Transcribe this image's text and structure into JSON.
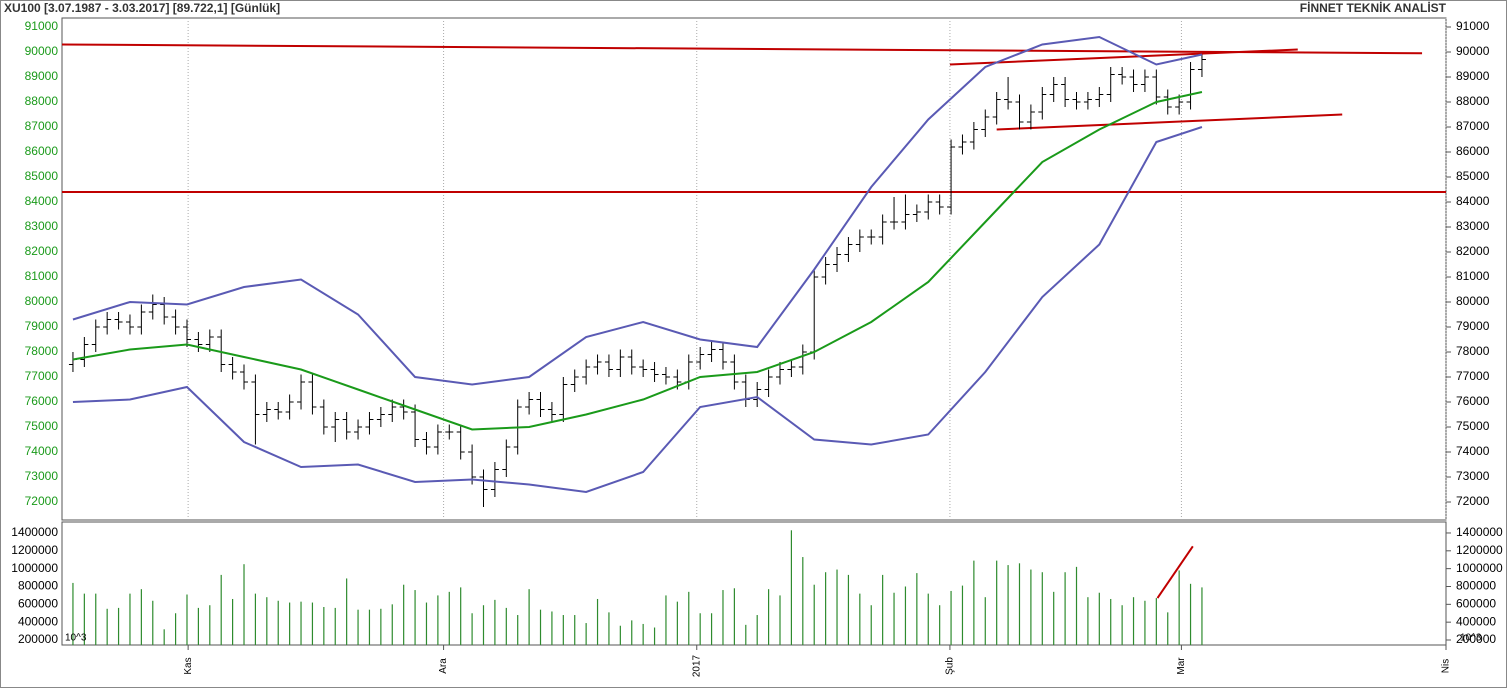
{
  "header": {
    "left": "XU100  [3.07.1987 - 3.03.2017]  [89.722,1]  [Günlük]",
    "right": "FİNNET TEKNİK ANALİST"
  },
  "chart_data": [
    {
      "type": "ohlc",
      "color": "#000000",
      "x": [
        0,
        1,
        2,
        3,
        4,
        5,
        6,
        7,
        8,
        9,
        10,
        11,
        12,
        13,
        14,
        15,
        16,
        17,
        18,
        19,
        20,
        21,
        22,
        23,
        24,
        25,
        26,
        27,
        28,
        29,
        30,
        31,
        32,
        33,
        34,
        35,
        36,
        37,
        38,
        39,
        40,
        41,
        42,
        43,
        44,
        45,
        46,
        47,
        48,
        49,
        50,
        51,
        52,
        53,
        54,
        55,
        56,
        57,
        58,
        59,
        60,
        61,
        62,
        63,
        64,
        65,
        66,
        67,
        68,
        69,
        70,
        71,
        72,
        73,
        74,
        75,
        76,
        77,
        78,
        79,
        80,
        81,
        82,
        83,
        84,
        85,
        86,
        87,
        88,
        89,
        90,
        91,
        92,
        93,
        94,
        95,
        96,
        97,
        98,
        99
      ],
      "open": [
        77500,
        77700,
        78300,
        79000,
        79300,
        79200,
        79000,
        79600,
        79900,
        79400,
        79000,
        78500,
        78300,
        78600,
        77500,
        77200,
        76800,
        75500,
        75700,
        75600,
        76000,
        76800,
        75800,
        75000,
        75300,
        74800,
        75000,
        75300,
        75500,
        75800,
        75600,
        74500,
        74200,
        74800,
        74800,
        74000,
        73000,
        72500,
        73300,
        74200,
        75800,
        76100,
        75700,
        75500,
        76700,
        77000,
        77400,
        77600,
        77300,
        77800,
        77400,
        77300,
        77100,
        77000,
        76800,
        77600,
        77900,
        78100,
        77600,
        76800,
        76100,
        76500,
        77000,
        77300,
        77400,
        78000,
        81000,
        81500,
        81900,
        82300,
        82600,
        82600,
        83200,
        83200,
        83500,
        83600,
        84000,
        83800,
        86200,
        86400,
        86900,
        87400,
        88100,
        88000,
        87200,
        87600,
        88300,
        88700,
        88100,
        88000,
        88100,
        88300,
        89100,
        89000,
        88700,
        89000,
        88200,
        87800,
        88000,
        89300
      ],
      "high": [
        78000,
        78600,
        79300,
        79600,
        79600,
        79500,
        79900,
        80300,
        80200,
        79700,
        79300,
        78800,
        78900,
        78900,
        77800,
        77500,
        77100,
        76000,
        76000,
        76300,
        77100,
        77100,
        76100,
        75600,
        75600,
        75300,
        75600,
        75800,
        76100,
        76100,
        75900,
        74800,
        75100,
        75100,
        75100,
        74300,
        73300,
        73600,
        74500,
        76100,
        76400,
        76400,
        76000,
        77000,
        77300,
        77700,
        77900,
        77900,
        78100,
        78100,
        77700,
        77600,
        77400,
        77300,
        77900,
        78200,
        78400,
        78400,
        77900,
        77100,
        76800,
        77300,
        77600,
        77700,
        78300,
        81300,
        81800,
        82200,
        82600,
        82900,
        82900,
        83500,
        84200,
        84300,
        83900,
        84300,
        84300,
        86500,
        86700,
        87200,
        87700,
        88400,
        89000,
        88300,
        87900,
        88600,
        89000,
        89000,
        88400,
        88400,
        88600,
        89400,
        89400,
        89300,
        89300,
        89300,
        88500,
        88300,
        89600,
        89900
      ],
      "low": [
        77200,
        77400,
        78000,
        78700,
        78900,
        78700,
        78700,
        79300,
        79100,
        78700,
        78200,
        78000,
        78000,
        77200,
        76900,
        76500,
        74300,
        75200,
        75300,
        75300,
        75700,
        75500,
        74700,
        74400,
        74500,
        74500,
        74700,
        75000,
        75200,
        75300,
        74200,
        73900,
        73900,
        74500,
        73700,
        72700,
        71800,
        72200,
        73000,
        73900,
        75500,
        75400,
        75200,
        75200,
        76400,
        76700,
        77100,
        77000,
        77000,
        77100,
        77000,
        76800,
        76700,
        76500,
        76500,
        77300,
        77600,
        77300,
        76500,
        75800,
        75800,
        76200,
        76700,
        77000,
        77100,
        77700,
        80700,
        81200,
        81600,
        82000,
        82300,
        82300,
        82900,
        82900,
        83200,
        83300,
        83500,
        83500,
        85900,
        86100,
        86600,
        87100,
        87700,
        86900,
        86900,
        87300,
        88000,
        87800,
        87700,
        87700,
        87800,
        88000,
        88700,
        88400,
        88400,
        87900,
        87500,
        87500,
        87700,
        89000
      ],
      "close": [
        77700,
        78300,
        79000,
        79300,
        79200,
        79000,
        79600,
        79900,
        79400,
        79000,
        78500,
        78300,
        78600,
        77500,
        77200,
        76800,
        75500,
        75700,
        75600,
        76000,
        76800,
        75800,
        75000,
        75300,
        74800,
        75000,
        75300,
        75500,
        75800,
        75600,
        74500,
        74200,
        74800,
        74800,
        74000,
        73000,
        72500,
        73300,
        74200,
        75800,
        76100,
        75700,
        75500,
        76700,
        77000,
        77400,
        77600,
        77300,
        77800,
        77400,
        77300,
        77100,
        77000,
        76800,
        77600,
        77900,
        78100,
        77600,
        76800,
        76100,
        76500,
        77000,
        77300,
        77400,
        78000,
        81000,
        81500,
        81900,
        82300,
        82600,
        82600,
        83200,
        83200,
        83500,
        83600,
        84000,
        83800,
        86200,
        86400,
        86900,
        87400,
        88100,
        88000,
        87200,
        87600,
        88300,
        88700,
        88100,
        88000,
        88100,
        88300,
        89100,
        89000,
        88700,
        89000,
        88200,
        87800,
        88000,
        89300,
        89700
      ],
      "line_x": [
        0,
        5,
        10,
        15,
        20,
        25,
        30,
        35,
        40,
        45,
        50,
        55,
        60,
        65,
        70,
        75,
        80,
        85,
        90,
        95,
        99
      ],
      "lines": [
        {
          "color": "#5a5ab4",
          "values": [
            79300,
            80000,
            79900,
            80600,
            80900,
            79500,
            77000,
            76700,
            77000,
            78600,
            79200,
            78500,
            78200,
            81300,
            84600,
            87300,
            89400,
            90300,
            90600,
            89500,
            89900
          ]
        },
        {
          "color": "#1a9a1a",
          "values": [
            77700,
            78100,
            78300,
            77800,
            77300,
            76500,
            75700,
            74900,
            75000,
            75500,
            76100,
            77000,
            77200,
            78000,
            79200,
            80800,
            83200,
            85600,
            86900,
            88000,
            88400
          ]
        },
        {
          "color": "#5a5ab4",
          "values": [
            76000,
            76100,
            76600,
            74400,
            73400,
            73500,
            72800,
            72900,
            72700,
            72400,
            73200,
            75800,
            76200,
            74500,
            74300,
            74700,
            77200,
            80200,
            82300,
            86400,
            87000
          ]
        }
      ],
      "trendline_color": "#c00000",
      "trendlines": [
        {
          "x": [
            -0.96,
            118.3
          ],
          "values": [
            90300,
            89950
          ]
        },
        {
          "x": [
            -0.96,
            120.4
          ],
          "values": [
            84400,
            84400
          ]
        },
        {
          "x": [
            76.9,
            107.4
          ],
          "values": [
            89500,
            90100
          ]
        },
        {
          "x": [
            81,
            111.3
          ],
          "values": [
            86900,
            87500
          ]
        }
      ],
      "xlim": [
        -0.96,
        120.4
      ],
      "xticks": [
        {
          "value": 10.1,
          "label": "Kas"
        },
        {
          "value": 32.5,
          "label": "Ara"
        },
        {
          "value": 54.7,
          "label": "2017"
        },
        {
          "value": 76.9,
          "label": "Şub"
        },
        {
          "value": 97.2,
          "label": "Mar"
        },
        {
          "value": 120.4,
          "label": "Nis"
        }
      ],
      "xgrid": true,
      "ylim": [
        71280,
        91360
      ],
      "yticks": [
        72000,
        73000,
        74000,
        75000,
        76000,
        77000,
        78000,
        79000,
        80000,
        81000,
        82000,
        83000,
        84000,
        85000,
        86000,
        87000,
        88000,
        89000,
        90000,
        91000
      ]
    },
    {
      "type": "bar",
      "color": "#2e8b2e",
      "unit_label": "10^3",
      "x": [
        0,
        1,
        2,
        3,
        4,
        5,
        6,
        7,
        8,
        9,
        10,
        11,
        12,
        13,
        14,
        15,
        16,
        17,
        18,
        19,
        20,
        21,
        22,
        23,
        24,
        25,
        26,
        27,
        28,
        29,
        30,
        31,
        32,
        33,
        34,
        35,
        36,
        37,
        38,
        39,
        40,
        41,
        42,
        43,
        44,
        45,
        46,
        47,
        48,
        49,
        50,
        51,
        52,
        53,
        54,
        55,
        56,
        57,
        58,
        59,
        60,
        61,
        62,
        63,
        64,
        65,
        66,
        67,
        68,
        69,
        70,
        71,
        72,
        73,
        74,
        75,
        76,
        77,
        78,
        79,
        80,
        81,
        82,
        83,
        84,
        85,
        86,
        87,
        88,
        89,
        90,
        91,
        92,
        93,
        94,
        95,
        96,
        97,
        98,
        99
      ],
      "values": [
        840000,
        720000,
        720000,
        550000,
        560000,
        720000,
        770000,
        640000,
        320000,
        500000,
        710000,
        560000,
        590000,
        930000,
        660000,
        1050000,
        720000,
        680000,
        640000,
        620000,
        630000,
        620000,
        570000,
        560000,
        890000,
        540000,
        540000,
        550000,
        600000,
        820000,
        760000,
        620000,
        700000,
        740000,
        790000,
        500000,
        590000,
        650000,
        560000,
        480000,
        770000,
        540000,
        520000,
        480000,
        480000,
        390000,
        660000,
        510000,
        360000,
        420000,
        380000,
        340000,
        700000,
        630000,
        740000,
        500000,
        500000,
        760000,
        780000,
        370000,
        480000,
        770000,
        700000,
        1430000,
        1130000,
        820000,
        960000,
        990000,
        930000,
        720000,
        590000,
        930000,
        730000,
        800000,
        950000,
        720000,
        590000,
        750000,
        810000,
        1090000,
        680000,
        1090000,
        1040000,
        1060000,
        990000,
        960000,
        740000,
        960000,
        1020000,
        680000,
        730000,
        660000,
        590000,
        680000,
        640000,
        670000,
        510000,
        980000,
        830000,
        790000
      ],
      "trendline_color": "#c00000",
      "trendlines": [
        {
          "x": [
            95.1,
            98.2
          ],
          "values": [
            670000,
            1250000
          ]
        }
      ],
      "xlim": [
        -0.96,
        120.4
      ],
      "ylim": [
        144000,
        1523000
      ],
      "yticks": [
        200000,
        400000,
        600000,
        800000,
        1000000,
        1200000,
        1400000
      ]
    }
  ]
}
